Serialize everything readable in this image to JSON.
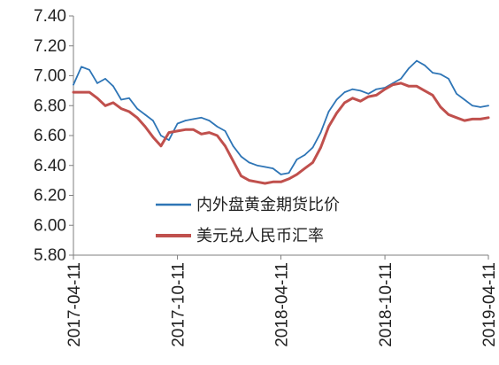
{
  "chart_data": {
    "type": "line",
    "title": "",
    "xlabel": "",
    "ylabel": "",
    "ylim": [
      5.8,
      7.4
    ],
    "yticks": [
      "5.80",
      "6.00",
      "6.20",
      "6.40",
      "6.60",
      "6.80",
      "7.00",
      "7.20",
      "7.40"
    ],
    "xticks": [
      "2017-04-11",
      "2017-10-11",
      "2018-04-11",
      "2018-10-11",
      "2019-04-11"
    ],
    "grid": false,
    "legend_position": "lower-center",
    "colors": {
      "gold_spread": "#2e75b6",
      "usdcny": "#c0504d"
    },
    "series": [
      {
        "name": "内外盘黄金期货比价",
        "color": "#2e75b6",
        "x": [
          "2017-04-11",
          "2017-04-25",
          "2017-05-09",
          "2017-05-23",
          "2017-06-06",
          "2017-06-20",
          "2017-07-04",
          "2017-07-18",
          "2017-08-01",
          "2017-08-15",
          "2017-08-29",
          "2017-09-12",
          "2017-09-26",
          "2017-10-11",
          "2017-10-25",
          "2017-11-08",
          "2017-11-22",
          "2017-12-06",
          "2017-12-20",
          "2018-01-03",
          "2018-01-17",
          "2018-01-31",
          "2018-02-14",
          "2018-02-28",
          "2018-03-14",
          "2018-03-28",
          "2018-04-11",
          "2018-04-25",
          "2018-05-09",
          "2018-05-23",
          "2018-06-06",
          "2018-06-20",
          "2018-07-04",
          "2018-07-18",
          "2018-08-01",
          "2018-08-15",
          "2018-08-29",
          "2018-09-12",
          "2018-09-26",
          "2018-10-11",
          "2018-10-25",
          "2018-11-08",
          "2018-11-22",
          "2018-12-06",
          "2018-12-20",
          "2019-01-03",
          "2019-01-17",
          "2019-01-31",
          "2019-02-14",
          "2019-02-28",
          "2019-03-14",
          "2019-03-28",
          "2019-04-11"
        ],
        "values": [
          6.94,
          7.06,
          7.04,
          6.95,
          6.98,
          6.93,
          6.84,
          6.85,
          6.78,
          6.74,
          6.7,
          6.6,
          6.57,
          6.68,
          6.7,
          6.71,
          6.72,
          6.7,
          6.66,
          6.63,
          6.53,
          6.46,
          6.42,
          6.4,
          6.39,
          6.38,
          6.34,
          6.35,
          6.44,
          6.47,
          6.52,
          6.62,
          6.76,
          6.84,
          6.89,
          6.91,
          6.9,
          6.88,
          6.91,
          6.92,
          6.95,
          6.98,
          7.05,
          7.1,
          7.07,
          7.02,
          7.01,
          6.98,
          6.88,
          6.84,
          6.8,
          6.79,
          6.8
        ]
      },
      {
        "name": "美元兑人民币汇率",
        "color": "#c0504d",
        "x": [
          "2017-04-11",
          "2017-04-25",
          "2017-05-09",
          "2017-05-23",
          "2017-06-06",
          "2017-06-20",
          "2017-07-04",
          "2017-07-18",
          "2017-08-01",
          "2017-08-15",
          "2017-08-29",
          "2017-09-12",
          "2017-09-26",
          "2017-10-11",
          "2017-10-25",
          "2017-11-08",
          "2017-11-22",
          "2017-12-06",
          "2017-12-20",
          "2018-01-03",
          "2018-01-17",
          "2018-01-31",
          "2018-02-14",
          "2018-02-28",
          "2018-03-14",
          "2018-03-28",
          "2018-04-11",
          "2018-04-25",
          "2018-05-09",
          "2018-05-23",
          "2018-06-06",
          "2018-06-20",
          "2018-07-04",
          "2018-07-18",
          "2018-08-01",
          "2018-08-15",
          "2018-08-29",
          "2018-09-12",
          "2018-09-26",
          "2018-10-11",
          "2018-10-25",
          "2018-11-08",
          "2018-11-22",
          "2018-12-06",
          "2018-12-20",
          "2019-01-03",
          "2019-01-17",
          "2019-01-31",
          "2019-02-14",
          "2019-02-28",
          "2019-03-14",
          "2019-03-28",
          "2019-04-11"
        ],
        "values": [
          6.89,
          6.89,
          6.89,
          6.85,
          6.8,
          6.82,
          6.78,
          6.76,
          6.72,
          6.66,
          6.59,
          6.53,
          6.62,
          6.63,
          6.64,
          6.64,
          6.61,
          6.62,
          6.6,
          6.53,
          6.43,
          6.33,
          6.3,
          6.29,
          6.28,
          6.29,
          6.29,
          6.31,
          6.34,
          6.38,
          6.42,
          6.52,
          6.66,
          6.75,
          6.82,
          6.85,
          6.83,
          6.86,
          6.87,
          6.91,
          6.94,
          6.95,
          6.93,
          6.93,
          6.9,
          6.87,
          6.79,
          6.74,
          6.72,
          6.7,
          6.71,
          6.71,
          6.72
        ]
      }
    ]
  }
}
